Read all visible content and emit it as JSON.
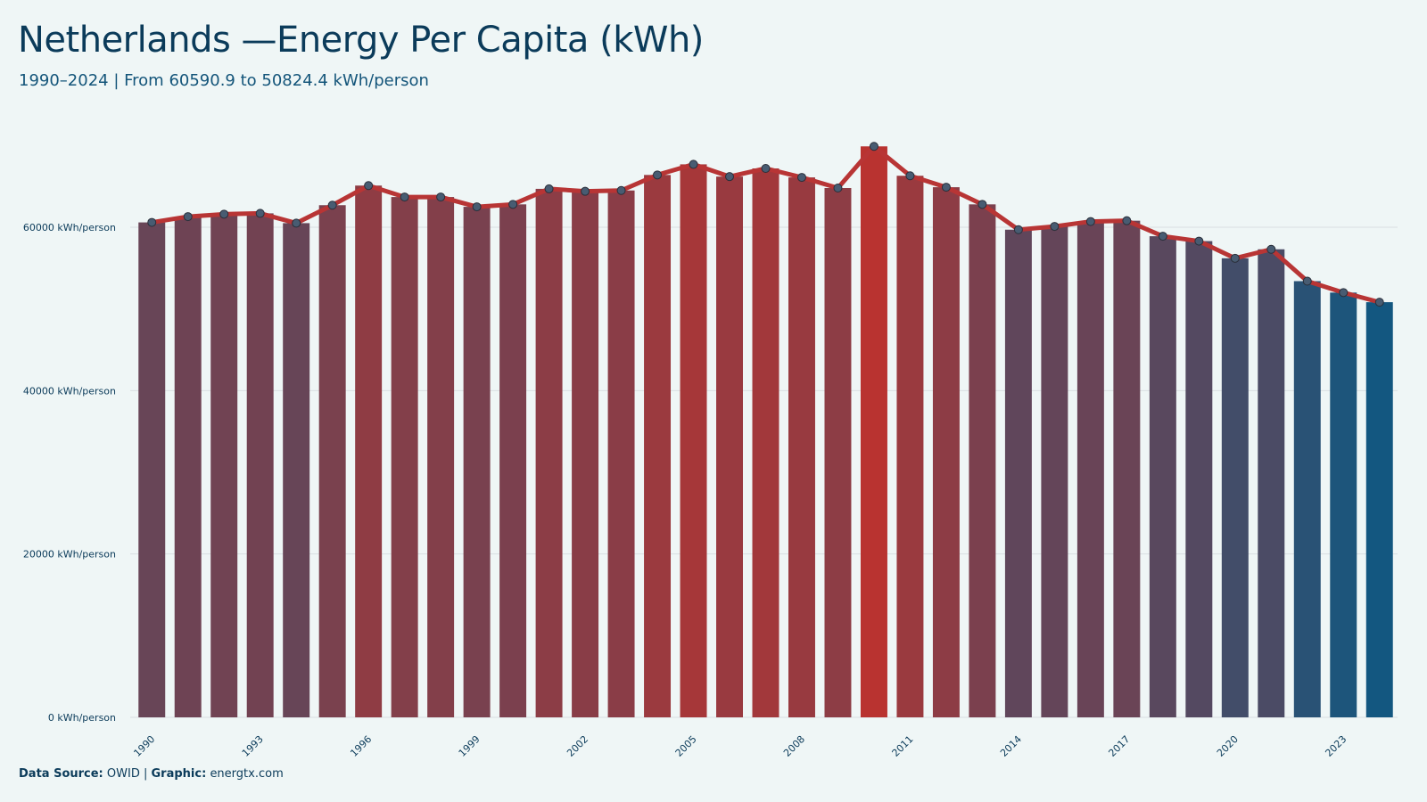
{
  "title": "Netherlands —Energy Per Capita (kWh)",
  "subtitle": "1990–2024 | From 60590.9  to 50824.4  kWh/person",
  "caption": {
    "source_label": "Data Source:",
    "source_value": "OWID",
    "separator": "|",
    "graphic_label": "Graphic:",
    "graphic_value": "energtx.com"
  },
  "chart_data": {
    "type": "bar",
    "categories": [
      1990,
      1991,
      1992,
      1993,
      1994,
      1995,
      1996,
      1997,
      1998,
      1999,
      2000,
      2001,
      2002,
      2003,
      2004,
      2005,
      2006,
      2007,
      2008,
      2009,
      2010,
      2011,
      2012,
      2013,
      2014,
      2015,
      2016,
      2017,
      2018,
      2019,
      2020,
      2021,
      2022,
      2023,
      2024
    ],
    "values": [
      60590.9,
      61300,
      61600,
      61700,
      60500,
      62700,
      65100,
      63700,
      63700,
      62500,
      62800,
      64700,
      64400,
      64500,
      66400,
      67700,
      66200,
      67200,
      66100,
      64800,
      69900,
      66300,
      64900,
      62800,
      59700,
      60100,
      60700,
      60800,
      58900,
      58300,
      56200,
      57300,
      53400,
      52000,
      50824.4
    ],
    "tick_labels": [
      "1990",
      "1993",
      "1996",
      "1999",
      "2002",
      "2005",
      "2008",
      "2011",
      "2014",
      "2017",
      "2020",
      "2023"
    ],
    "y_ticks": [
      0,
      20000,
      40000,
      60000
    ],
    "y_tick_suffix": " kWh/person",
    "ylim": [
      0,
      72000
    ],
    "grid": true,
    "legend": "none",
    "colors": {
      "low": "#135780",
      "high": "#b93330",
      "line": "#b83535",
      "marker": "#485c72",
      "grid": "#d9dfe1",
      "background": "#eff6f6"
    }
  }
}
